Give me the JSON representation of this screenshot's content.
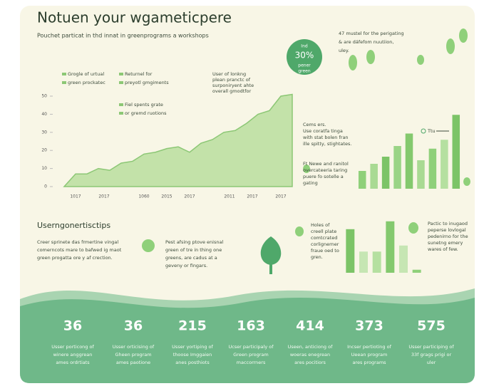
{
  "header": {
    "title": "Notuen your wgameticpere",
    "subtitle": "Pouchet particat in thd innat in greenprograms a workshops"
  },
  "badge": [
    "Ind",
    "30%",
    "pener",
    "green"
  ],
  "note_top": [
    "47 mustel for the perigating",
    "& are dáfefom nuutiion,",
    "uley."
  ],
  "chart_data": [
    {
      "type": "area",
      "color": "#c3e2a9",
      "line_color": "#8cc775",
      "legend": [
        "Grogle of urtual",
        "green prockatec",
        "Returnel for",
        "preyotl gmgiments",
        "Fiel spents grate",
        "or gremd ruotions"
      ],
      "annotation": [
        "User of lonkng",
        "plean pranctc of",
        "surponiryent ahte",
        "overall gmodtfor"
      ],
      "x": [
        0,
        1,
        2,
        3,
        4,
        5,
        6,
        7,
        8,
        9,
        10,
        11,
        12,
        13,
        14,
        15,
        16,
        17,
        18,
        19,
        20
      ],
      "values": [
        0,
        7,
        7,
        10,
        9,
        13,
        14,
        18,
        19,
        21,
        22,
        19,
        24,
        26,
        30,
        31,
        35,
        40,
        42,
        50,
        51
      ],
      "xlim": [
        0,
        20
      ],
      "ylim": [
        0,
        50
      ],
      "yticks": [
        0,
        10,
        20,
        30,
        40,
        50
      ],
      "xticks": [
        {
          "value": 1,
          "label": "1017"
        },
        {
          "value": 3.5,
          "label": "2017"
        },
        {
          "value": 7,
          "label": "1060"
        },
        {
          "value": 9,
          "label": "2015"
        },
        {
          "value": 11,
          "label": "2017"
        },
        {
          "value": 14.5,
          "label": "2011"
        },
        {
          "value": 16.5,
          "label": "2017"
        },
        {
          "value": 19,
          "label": "2017"
        }
      ]
    },
    {
      "type": "bar",
      "label": "Ttu",
      "ylim": [
        0,
        100
      ],
      "values": [
        20,
        28,
        36,
        48,
        62,
        32,
        45,
        55,
        83
      ],
      "colors": [
        "#8fd07a",
        "#a9da93",
        "#7cc467",
        "#9ad486",
        "#84c96e",
        "#a9da93",
        "#8fd07a",
        "#b5e0a0",
        "#7cc467"
      ]
    },
    {
      "type": "bar",
      "ylim": [
        0,
        100
      ],
      "values": [
        72,
        35,
        35,
        85,
        45,
        5
      ],
      "colors": [
        "#7cc467",
        "#c6e6b3",
        "#b5e0a0",
        "#84c96e",
        "#c6e6b3",
        "#8fd07a"
      ]
    }
  ],
  "annotations": [
    [
      "Cems ers.",
      "Use coratfa tinga",
      "with stat bolen fran",
      "ille spitty, stightates."
    ],
    [
      "Ft Newe and ranitol",
      "overcateeria taring",
      "puere fo sotelle a",
      "gating"
    ]
  ],
  "tips": {
    "title": "Userngonertisctips",
    "left": [
      "Creer sprinete das frmertine vingal",
      "comerncots mare to bafwed ig maot",
      "green progatta ore y af crection."
    ],
    "right": [
      "Pest afsing ptove enisnal",
      "green of tre in thing one",
      "greens, are cadus at a",
      "geveny or fingars."
    ]
  },
  "notes_mid": [
    [
      "Holes of",
      "creell plate",
      "comtcrated",
      "corlignerner",
      "fraue oed to",
      "gren."
    ],
    [
      "Pactic to inugaod",
      "peperse lovlogal",
      "pedenirno for the",
      "sunetng emery",
      "wares of few."
    ]
  ],
  "stats": [
    {
      "value": "36",
      "caption": [
        "Usser porticong of",
        "winere anggrean",
        "ames ordrtiats"
      ]
    },
    {
      "value": "36",
      "caption": [
        "Usser orticising of",
        "Gheen program",
        "ames paotione"
      ]
    },
    {
      "value": "215",
      "caption": [
        "Usser yortiping of",
        "thoose Imggaien",
        "anes posthiots"
      ]
    },
    {
      "value": "163",
      "caption": [
        "Ucser participaly of",
        "Green program",
        "maccorrners"
      ]
    },
    {
      "value": "414",
      "caption": [
        "Useen, anticiong of",
        "woeras enegrean",
        "ares pocitiors"
      ]
    },
    {
      "value": "373",
      "caption": [
        "Incser pertioting of",
        "Ueean program",
        "ares programs"
      ]
    },
    {
      "value": "575",
      "caption": [
        "Usser participing of",
        "33f grags prigi or",
        "uler"
      ]
    }
  ]
}
